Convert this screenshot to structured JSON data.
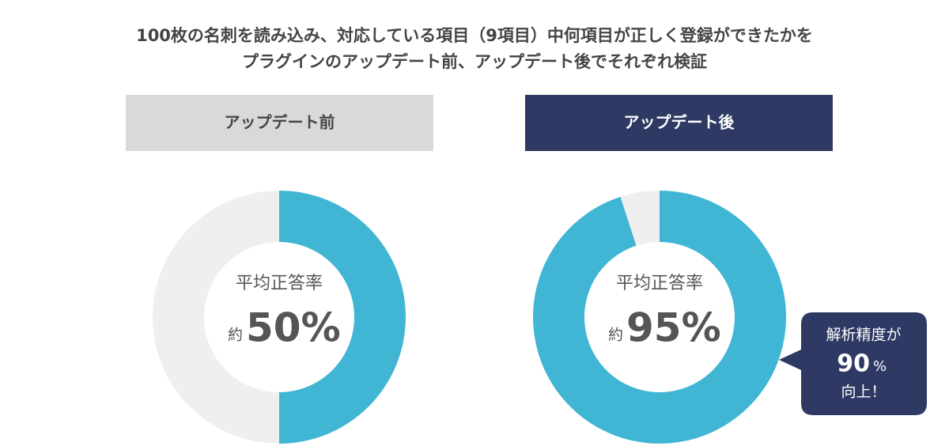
{
  "title": [
    "100枚の名刺を読み込み、対応している項目（9項目）中何項目が正しく登録ができたかを",
    "プラグインのアップデート前、アップデート後でそれぞれ検証"
  ],
  "chart_data": [
    {
      "type": "donut",
      "header": "アップデート前",
      "header_fill": "#d9d9d9",
      "header_color": "#444444",
      "values": [
        50,
        50
      ],
      "colors": [
        "#41b6d4",
        "#efefef"
      ],
      "center_label": "平均正答率",
      "center_prefix": "約",
      "center_value": {
        "value": 50,
        "label": "50%"
      }
    },
    {
      "type": "donut",
      "header": "アップデート後",
      "header_fill": "#2e3a63",
      "header_color": "#ffffff",
      "values": [
        95,
        5
      ],
      "colors": [
        "#41b6d4",
        "#efefef"
      ],
      "center_label": "平均正答率",
      "center_prefix": "約",
      "center_value": {
        "value": 95,
        "label": "95%"
      }
    }
  ],
  "callout": {
    "line1": "解析精度が",
    "value": 90,
    "unit": "%",
    "line3": "向上！"
  }
}
